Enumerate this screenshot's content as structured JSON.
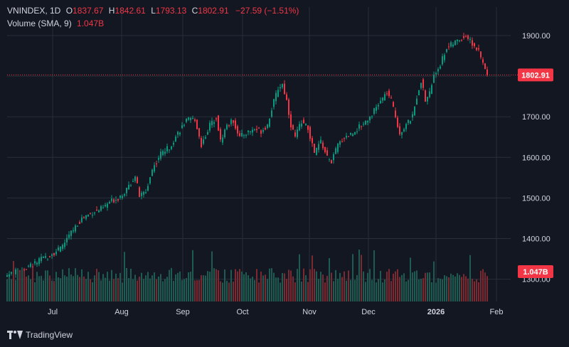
{
  "legend": {
    "symbol": "VNINDEX, 1D",
    "o_label": "O",
    "o_value": "1837.67",
    "h_label": "H",
    "h_value": "1842.61",
    "l_label": "L",
    "l_value": "1793.13",
    "c_label": "C",
    "c_value": "1802.91",
    "change": "−27.59 (−1.51%)",
    "volume_label": "Volume (SMA, 9)",
    "volume_value": "1.047B"
  },
  "footer": {
    "brand": "TradingView",
    "logo_icon": "tradingview-logo-icon"
  },
  "colors": {
    "up": "#089981",
    "down": "#f23645",
    "bg": "#131722",
    "grid": "#2a2e39",
    "text": "#d1d4dc",
    "vol_up": "#1e5c52",
    "vol_down": "#7a2a30"
  },
  "chart_data": {
    "type": "candlestick",
    "title": "VNINDEX, 1D",
    "x_tick_labels": [
      "Jul",
      "Aug",
      "Sep",
      "Oct",
      "Nov",
      "Dec",
      "2026",
      "Feb"
    ],
    "y_tick_labels": [
      "1300.00",
      "1400.00",
      "1500.00",
      "1600.00",
      "1700.00",
      "1800.00",
      "1900.00"
    ],
    "ylim": [
      1245,
      1935
    ],
    "last_price": 1802.91,
    "last_price_label": "1802.91",
    "last_volume_label": "1.047B",
    "close_path": [
      [
        0,
        1310
      ],
      [
        8,
        1325
      ],
      [
        15,
        1345
      ],
      [
        20,
        1360
      ],
      [
        25,
        1375
      ],
      [
        30,
        1415
      ],
      [
        35,
        1450
      ],
      [
        40,
        1465
      ],
      [
        45,
        1475
      ],
      [
        48,
        1490
      ],
      [
        52,
        1500
      ],
      [
        56,
        1520
      ],
      [
        60,
        1555
      ],
      [
        62,
        1505
      ],
      [
        65,
        1515
      ],
      [
        68,
        1570
      ],
      [
        72,
        1610
      ],
      [
        76,
        1625
      ],
      [
        80,
        1660
      ],
      [
        84,
        1690
      ],
      [
        88,
        1695
      ],
      [
        91,
        1630
      ],
      [
        95,
        1680
      ],
      [
        98,
        1700
      ],
      [
        100,
        1640
      ],
      [
        103,
        1680
      ],
      [
        106,
        1690
      ],
      [
        109,
        1650
      ],
      [
        112,
        1660
      ],
      [
        116,
        1670
      ],
      [
        119,
        1665
      ],
      [
        122,
        1680
      ],
      [
        124,
        1720
      ],
      [
        127,
        1770
      ],
      [
        129,
        1780
      ],
      [
        131,
        1740
      ],
      [
        133,
        1680
      ],
      [
        135,
        1650
      ],
      [
        138,
        1690
      ],
      [
        141,
        1670
      ],
      [
        144,
        1610
      ],
      [
        147,
        1640
      ],
      [
        150,
        1600
      ],
      [
        152,
        1590
      ],
      [
        155,
        1630
      ],
      [
        158,
        1650
      ],
      [
        162,
        1660
      ],
      [
        166,
        1680
      ],
      [
        170,
        1700
      ],
      [
        174,
        1730
      ],
      [
        178,
        1760
      ],
      [
        180,
        1740
      ],
      [
        182,
        1700
      ],
      [
        184,
        1660
      ],
      [
        187,
        1680
      ],
      [
        190,
        1700
      ],
      [
        192,
        1750
      ],
      [
        194,
        1790
      ],
      [
        196,
        1740
      ],
      [
        198,
        1760
      ],
      [
        200,
        1800
      ],
      [
        203,
        1830
      ],
      [
        206,
        1870
      ],
      [
        209,
        1880
      ],
      [
        212,
        1890
      ],
      [
        215,
        1900
      ],
      [
        218,
        1880
      ],
      [
        221,
        1860
      ],
      [
        223,
        1830
      ],
      [
        225,
        1802.91
      ]
    ],
    "volume_scale_max": 1.8
  }
}
